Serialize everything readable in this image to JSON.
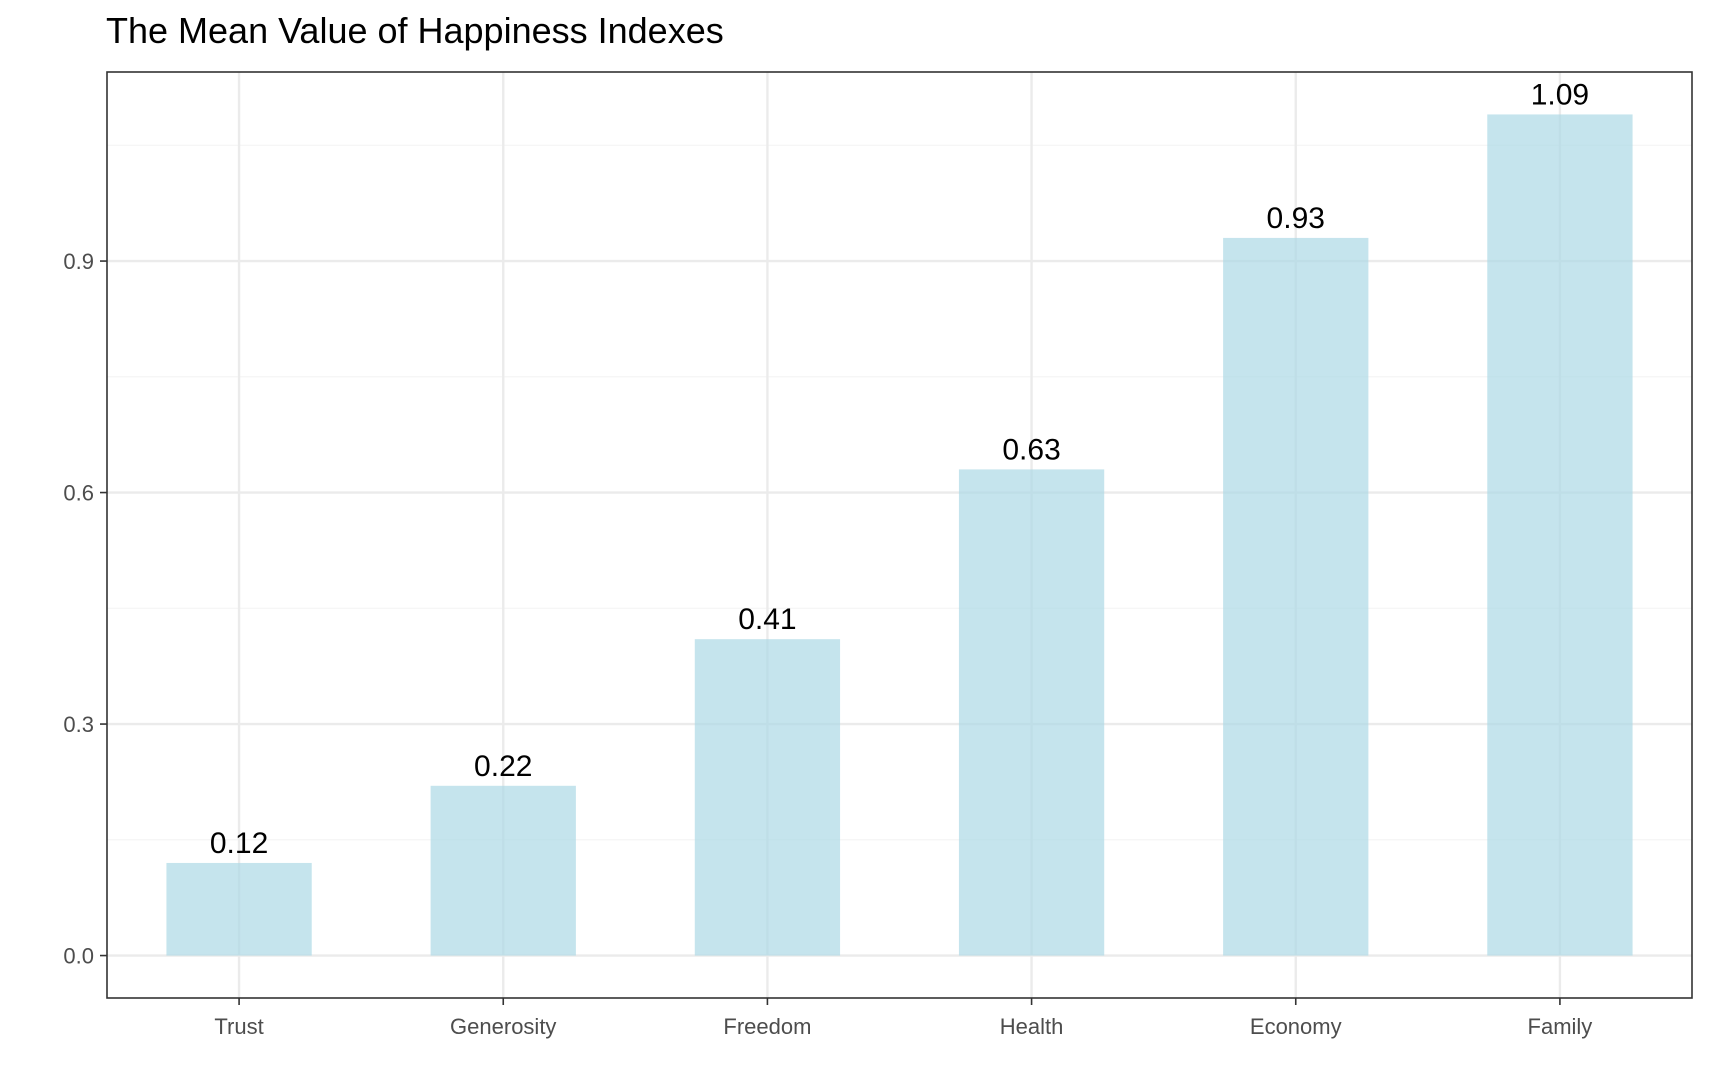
{
  "chart_data": {
    "type": "bar",
    "title": "The Mean Value of Happiness Indexes",
    "xlabel": "",
    "ylabel": "",
    "categories": [
      "Trust",
      "Generosity",
      "Freedom",
      "Health",
      "Economy",
      "Family"
    ],
    "values": [
      0.12,
      0.22,
      0.41,
      0.63,
      0.93,
      1.09
    ],
    "data_labels": [
      "0.12",
      "0.22",
      "0.41",
      "0.63",
      "0.93",
      "1.09"
    ],
    "ylim": [
      -0.055,
      1.145
    ],
    "yticks": [
      0.0,
      0.3,
      0.6,
      0.9
    ],
    "ytick_labels": [
      "0.0",
      "0.3",
      "0.6",
      "0.9"
    ],
    "grid": true,
    "legend": "none",
    "colors": {
      "bar": "#add8e6",
      "grid_major": "#ebebeb",
      "grid_minor": "#f4f4f4",
      "panel_border": "#333333",
      "text": "#000000",
      "tick_text": "#4d4d4d"
    }
  }
}
